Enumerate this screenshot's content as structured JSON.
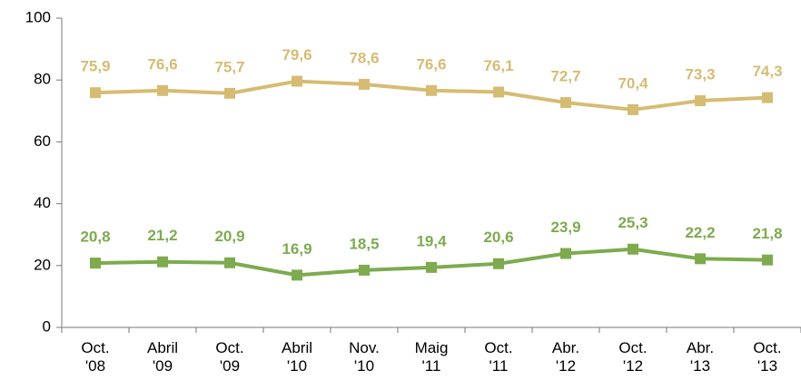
{
  "chart_data": {
    "type": "line",
    "categories": [
      "Oct. '08",
      "Abril '09",
      "Oct. '09",
      "Abril '10",
      "Nov. '10",
      "Maig '11",
      "Oct. '11",
      "Abr. '12",
      "Oct. '12",
      "Abr. '13",
      "Oct. '13"
    ],
    "series": [
      {
        "color": "#d6bc72",
        "values": [
          75.9,
          76.6,
          75.7,
          79.6,
          78.6,
          76.6,
          76.1,
          72.7,
          70.4,
          73.3,
          74.3
        ],
        "value_labels": [
          "75,9",
          "76,6",
          "75,7",
          "79,6",
          "78,6",
          "76,6",
          "76,1",
          "72,7",
          "70,4",
          "73,3",
          "74,3"
        ]
      },
      {
        "color": "#7dab4e",
        "values": [
          20.8,
          21.2,
          20.9,
          16.9,
          18.5,
          19.4,
          20.6,
          23.9,
          25.3,
          22.2,
          21.8
        ],
        "value_labels": [
          "20,8",
          "21,2",
          "20,9",
          "16,9",
          "18,5",
          "19,4",
          "20,6",
          "23,9",
          "25,3",
          "22,2",
          "21,8"
        ]
      }
    ],
    "ylim": [
      0,
      100
    ],
    "yticks": [
      0,
      20,
      40,
      60,
      80,
      100
    ],
    "grid": false
  }
}
